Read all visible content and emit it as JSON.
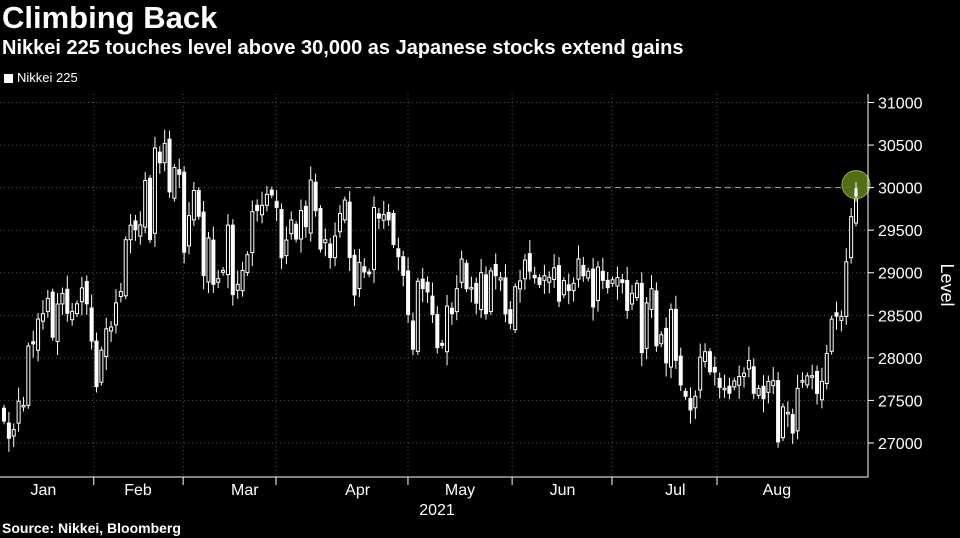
{
  "chart_data": {
    "type": "candlestick",
    "title": "Climbing Back",
    "subtitle": "Nikkei 225 touches level above 30,000 as Japanese stocks extend gains",
    "legend": [
      "Nikkei 225"
    ],
    "source": "Source: Nikkei, Bloomberg",
    "xlabel": "2021",
    "ylabel": "Level",
    "ylim": [
      26600,
      31100
    ],
    "yticks": [
      27000,
      27500,
      28000,
      28500,
      29000,
      29500,
      30000,
      30500,
      31000
    ],
    "x_tick_labels": [
      "Jan",
      "Feb",
      "Mar",
      "Apr",
      "May",
      "Jun",
      "Jul",
      "Aug"
    ],
    "reference_line": 30000,
    "highlight_value": 30000,
    "grid": true,
    "colors": {
      "background": "#000000",
      "candle": "#ffffff",
      "grid": "#555555",
      "highlight": "#5a7a1a"
    },
    "series": [
      {
        "name": "Nikkei 225",
        "closes": [
          27258,
          27056,
          27158,
          27490,
          27441,
          28139,
          28164,
          28456,
          28519,
          28698,
          28242,
          28633,
          28756,
          28523,
          28546,
          28635,
          28822,
          28635,
          28197,
          27663,
          28091,
          28341,
          28362,
          28646,
          28779,
          29388,
          29559,
          29505,
          29562,
          30084,
          29389,
          30467,
          30292,
          30520,
          29950,
          30236,
          30156,
          29241,
          29671,
          29966,
          29663,
          28966,
          29408,
          28864,
          28930,
          29028,
          29559,
          28743,
          28864,
          29027,
          29212,
          29718,
          29731,
          29792,
          29921,
          29914,
          29768,
          29176,
          29384,
          29620,
          29396,
          29730,
          29541,
          30089,
          29729,
          29278,
          29388,
          29178,
          29432,
          29696,
          29854,
          29179,
          28739,
          29121,
          29008,
          28987,
          29767,
          29642,
          29683,
          29621,
          29331,
          29188,
          28970,
          28508,
          28101,
          28900,
          28813,
          28775,
          28508,
          28120,
          28147,
          28608,
          28518,
          28813,
          29161,
          28812,
          28825,
          28643,
          29000,
          28519,
          29022,
          28965,
          28940,
          28517,
          28406,
          28835,
          28904,
          29149,
          29019,
          28941,
          28861,
          28964,
          28946,
          29058,
          28666,
          28908,
          28790,
          28875,
          29161,
          28964,
          29018,
          28598,
          29067,
          28910,
          28825,
          28918,
          28943,
          28884,
          28558,
          28758,
          28875,
          28062,
          28644,
          28812,
          28141,
          28271,
          27941,
          28569,
          27970,
          27681,
          27548,
          27388,
          27548,
          28008,
          28072,
          27837,
          27833,
          27653,
          27642,
          27584,
          27728,
          27781,
          27820,
          27970,
          27584,
          27641,
          27520,
          27723,
          27732,
          27013,
          27424,
          27359,
          27117,
          27641,
          27732,
          27788,
          27790,
          27582,
          27724,
          28052,
          28455,
          28490,
          28487,
          29128,
          29659,
          29954
        ]
      }
    ]
  }
}
